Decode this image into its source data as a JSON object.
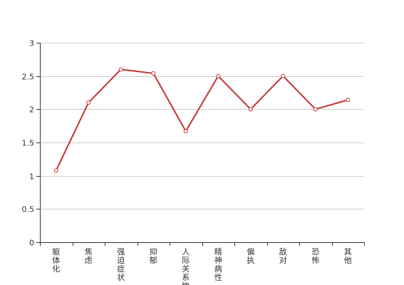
{
  "chart_data": {
    "type": "line",
    "categories": [
      "躯体化",
      "焦虑",
      "强迫症状",
      "抑郁",
      "人际关系敏感",
      "精神病性",
      "偏执",
      "敌对",
      "恐怖",
      "其他"
    ],
    "series": [
      {
        "values": [
          1.08,
          2.1,
          2.6,
          2.54,
          1.67,
          2.5,
          2.0,
          2.5,
          2.0,
          2.14
        ]
      }
    ],
    "ylim": [
      0,
      3
    ],
    "yticks": [
      "0",
      "0.5",
      "1",
      "1.5",
      "2",
      "2.5",
      "3"
    ],
    "grid": true,
    "colors": {
      "line": "#c23531",
      "grid": "#cccccc",
      "axis": "#333333"
    }
  }
}
